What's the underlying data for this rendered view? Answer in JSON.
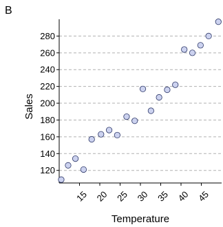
{
  "panel_label": "B",
  "chart_data": {
    "type": "scatter",
    "xlabel": "Temperature",
    "ylabel": "Sales",
    "xlim": [
      10,
      50
    ],
    "ylim": [
      105,
      300
    ],
    "xticks": [
      15,
      20,
      25,
      30,
      35,
      40,
      45
    ],
    "yticks": [
      120,
      140,
      160,
      180,
      200,
      220,
      240,
      260,
      280
    ],
    "grid": "horizontal",
    "point_color": "#ccd2ef",
    "points": [
      {
        "x": 10.5,
        "y": 109
      },
      {
        "x": 12.2,
        "y": 126
      },
      {
        "x": 14.0,
        "y": 134
      },
      {
        "x": 16.0,
        "y": 121
      },
      {
        "x": 18.0,
        "y": 157
      },
      {
        "x": 20.3,
        "y": 163
      },
      {
        "x": 22.3,
        "y": 168
      },
      {
        "x": 24.3,
        "y": 162
      },
      {
        "x": 26.6,
        "y": 184
      },
      {
        "x": 28.6,
        "y": 179
      },
      {
        "x": 30.6,
        "y": 217
      },
      {
        "x": 32.6,
        "y": 191
      },
      {
        "x": 34.6,
        "y": 207
      },
      {
        "x": 36.6,
        "y": 216
      },
      {
        "x": 38.6,
        "y": 222
      },
      {
        "x": 40.8,
        "y": 264
      },
      {
        "x": 42.8,
        "y": 260
      },
      {
        "x": 44.8,
        "y": 269
      },
      {
        "x": 46.8,
        "y": 280
      },
      {
        "x": 49.2,
        "y": 297
      }
    ]
  }
}
